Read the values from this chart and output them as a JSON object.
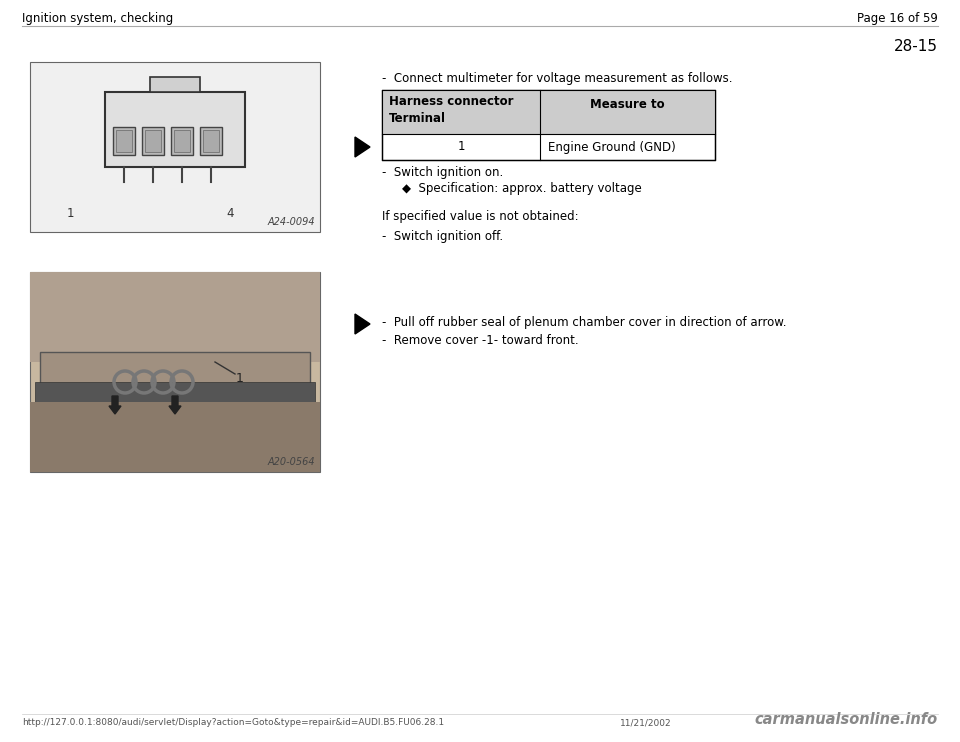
{
  "page_title_left": "Ignition system, checking",
  "page_title_right": "Page 16 of 59",
  "section_number": "28-15",
  "bg_color": "#ffffff",
  "header_line_color": "#aaaaaa",
  "text_color": "#000000",
  "table_header_bg": "#cccccc",
  "table_border_color": "#000000",
  "bullet1_text": "-  Connect multimeter for voltage measurement as follows.",
  "table_col1_header_line1": "Harness connector",
  "table_col1_header_line2": "Terminal",
  "table_col2_header": "Measure to",
  "table_row1_col1": "1",
  "table_row1_col2": "Engine Ground (GND)",
  "bullet2_text": "-  Switch ignition on.",
  "spec_text": "◆  Specification: approx. battery voltage",
  "if_specified_text": "If specified value is not obtained:",
  "bullet3_text": "-  Switch ignition off.",
  "bullet4_text": "-  Pull off rubber seal of plenum chamber cover in direction of arrow.",
  "bullet5_text": "-  Remove cover -1- toward front.",
  "footer_url": "http://127.0.0.1:8080/audi/servlet/Display?action=Goto&type=repair&id=AUDI.B5.FU06.28.1",
  "footer_date": "11/21/2002",
  "footer_watermark": "carmanualsonline.info",
  "img1_label": "A24-0094",
  "img2_label": "A20-0564",
  "font_size_title": 8.5,
  "font_size_body": 8.5,
  "font_size_section": 11,
  "font_size_table": 8.5,
  "font_size_footer": 6.5,
  "font_size_watermark": 10.5
}
